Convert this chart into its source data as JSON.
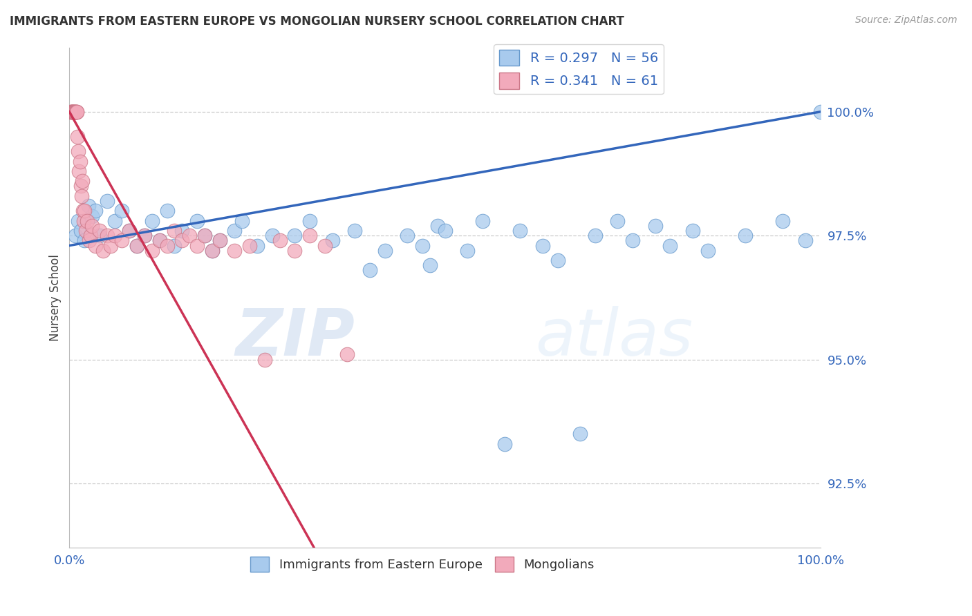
{
  "title": "IMMIGRANTS FROM EASTERN EUROPE VS MONGOLIAN NURSERY SCHOOL CORRELATION CHART",
  "source": "Source: ZipAtlas.com",
  "ylabel": "Nursery School",
  "legend_label_1": "Immigrants from Eastern Europe",
  "legend_label_2": "Mongolians",
  "R1": 0.297,
  "N1": 56,
  "R2": 0.341,
  "N2": 61,
  "xlim": [
    0.0,
    100.0
  ],
  "ylim": [
    91.2,
    101.3
  ],
  "yticks": [
    92.5,
    95.0,
    97.5,
    100.0
  ],
  "ytick_labels": [
    "92.5%",
    "95.0%",
    "97.5%",
    "100.0%"
  ],
  "xtick_labels": [
    "0.0%",
    "100.0%"
  ],
  "color_blue": "#A8CAED",
  "color_pink": "#F2AABB",
  "color_blue_edge": "#6699CC",
  "color_pink_edge": "#CC7788",
  "color_blue_line": "#3366BB",
  "color_pink_line": "#CC3355",
  "background_color": "#FFFFFF",
  "title_color": "#333333",
  "source_color": "#999999",
  "legend_text_color": "#3366BB",
  "watermark_zip": "ZIP",
  "watermark_atlas": "atlas",
  "blue_line_x0": 0.0,
  "blue_line_y0": 97.3,
  "blue_line_x1": 100.0,
  "blue_line_y1": 100.0,
  "pink_line_x0": 0.0,
  "pink_line_y0": 100.0,
  "pink_line_x1": 10.0,
  "pink_line_y1": 97.3,
  "blue_dots_x": [
    0.8,
    1.2,
    1.5,
    2.0,
    2.5,
    3.0,
    3.5,
    4.0,
    5.0,
    6.0,
    7.0,
    8.0,
    9.0,
    10.0,
    11.0,
    12.0,
    13.0,
    14.0,
    15.0,
    17.0,
    18.0,
    19.0,
    20.0,
    22.0,
    23.0,
    25.0,
    27.0,
    30.0,
    32.0,
    35.0,
    38.0,
    40.0,
    42.0,
    45.0,
    47.0,
    48.0,
    49.0,
    50.0,
    53.0,
    55.0,
    58.0,
    60.0,
    63.0,
    65.0,
    68.0,
    70.0,
    73.0,
    75.0,
    78.0,
    80.0,
    83.0,
    85.0,
    90.0,
    95.0,
    98.0,
    100.0
  ],
  "blue_dots_y": [
    97.5,
    97.8,
    97.6,
    97.4,
    98.1,
    97.9,
    98.0,
    97.5,
    98.2,
    97.8,
    98.0,
    97.6,
    97.3,
    97.5,
    97.8,
    97.4,
    98.0,
    97.3,
    97.6,
    97.8,
    97.5,
    97.2,
    97.4,
    97.6,
    97.8,
    97.3,
    97.5,
    97.5,
    97.8,
    97.4,
    97.6,
    96.8,
    97.2,
    97.5,
    97.3,
    96.9,
    97.7,
    97.6,
    97.2,
    97.8,
    93.3,
    97.6,
    97.3,
    97.0,
    93.5,
    97.5,
    97.8,
    97.4,
    97.7,
    97.3,
    97.6,
    97.2,
    97.5,
    97.8,
    97.4,
    100.0
  ],
  "pink_dots_x": [
    0.15,
    0.2,
    0.25,
    0.3,
    0.35,
    0.4,
    0.45,
    0.5,
    0.55,
    0.6,
    0.65,
    0.7,
    0.75,
    0.8,
    0.85,
    0.9,
    0.95,
    1.0,
    1.1,
    1.2,
    1.3,
    1.4,
    1.5,
    1.6,
    1.7,
    1.8,
    1.9,
    2.0,
    2.2,
    2.4,
    2.6,
    2.8,
    3.0,
    3.5,
    4.0,
    4.5,
    5.0,
    5.5,
    6.0,
    7.0,
    8.0,
    9.0,
    10.0,
    11.0,
    12.0,
    13.0,
    14.0,
    15.0,
    16.0,
    17.0,
    18.0,
    19.0,
    20.0,
    22.0,
    24.0,
    26.0,
    28.0,
    30.0,
    32.0,
    34.0,
    37.0
  ],
  "pink_dots_y": [
    100.0,
    100.0,
    100.0,
    100.0,
    100.0,
    100.0,
    100.0,
    100.0,
    100.0,
    100.0,
    100.0,
    100.0,
    100.0,
    100.0,
    100.0,
    100.0,
    100.0,
    100.0,
    99.5,
    99.2,
    98.8,
    99.0,
    98.5,
    98.3,
    98.6,
    98.0,
    97.8,
    98.0,
    97.6,
    97.8,
    97.4,
    97.5,
    97.7,
    97.3,
    97.6,
    97.2,
    97.5,
    97.3,
    97.5,
    97.4,
    97.6,
    97.3,
    97.5,
    97.2,
    97.4,
    97.3,
    97.6,
    97.4,
    97.5,
    97.3,
    97.5,
    97.2,
    97.4,
    97.2,
    97.3,
    95.0,
    97.4,
    97.2,
    97.5,
    97.3,
    95.1
  ]
}
